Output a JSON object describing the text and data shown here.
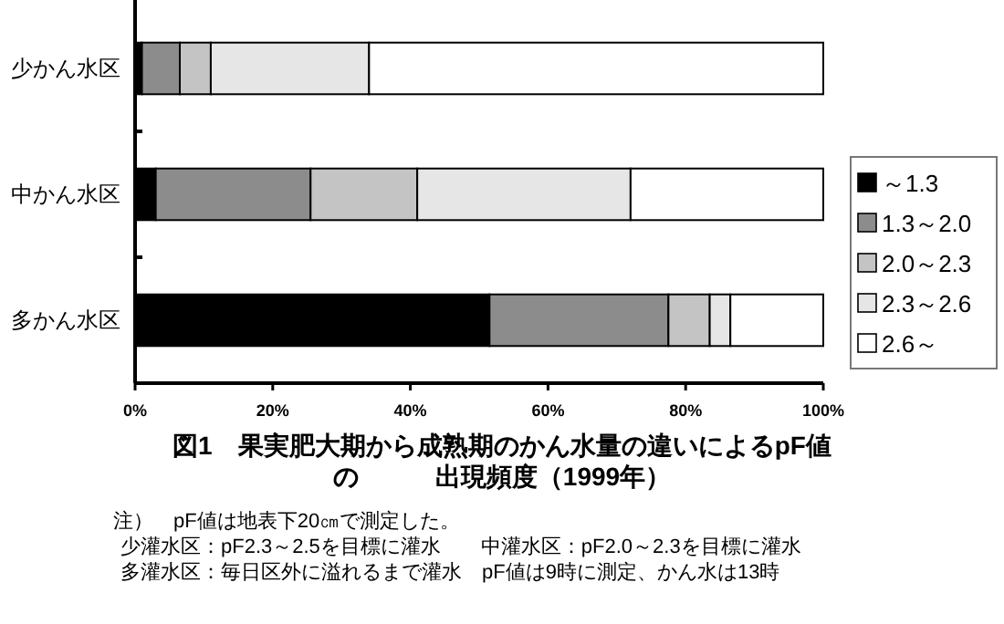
{
  "chart_data": {
    "type": "bar",
    "orientation": "horizontal",
    "stacked": true,
    "title": "図1　果実肥大期から成熟期のかん水量の違いによるpF値の　　　出現頻度（1999年）",
    "categories": [
      "少かん水区",
      "中かん水区",
      "多かん水区"
    ],
    "series": [
      {
        "name": "～1.3",
        "color": "#000000",
        "values": [
          1,
          3,
          51.5
        ]
      },
      {
        "name": "1.3～2.0",
        "color": "#8c8c8c",
        "values": [
          5.5,
          22.5,
          26
        ]
      },
      {
        "name": "2.0～2.3",
        "color": "#c4c4c4",
        "values": [
          4.5,
          15.5,
          6
        ]
      },
      {
        "name": "2.3～2.6",
        "color": "#e6e6e6",
        "values": [
          23,
          31,
          3
        ]
      },
      {
        "name": "2.6～",
        "color": "#ffffff",
        "values": [
          66,
          28,
          13.5
        ]
      }
    ],
    "xlim": [
      0,
      100
    ],
    "xticks": [
      {
        "value": 0,
        "label": "0%"
      },
      {
        "value": 20,
        "label": "20%"
      },
      {
        "value": 40,
        "label": "40%"
      },
      {
        "value": 60,
        "label": "60%"
      },
      {
        "value": 80,
        "label": "80%"
      },
      {
        "value": 100,
        "label": "100%"
      }
    ],
    "grid": false,
    "legend": "right",
    "annotations": [
      "注）　pF値は地表下20㎝で測定した。",
      "少灌水区：pF2.3～2.5を目標に灌水　　中灌水区：pF2.0～2.3を目標に灌水",
      "多灌水区：毎日区外に溢れるまで灌水　pF値は9時に測定、かん水は13時"
    ]
  }
}
